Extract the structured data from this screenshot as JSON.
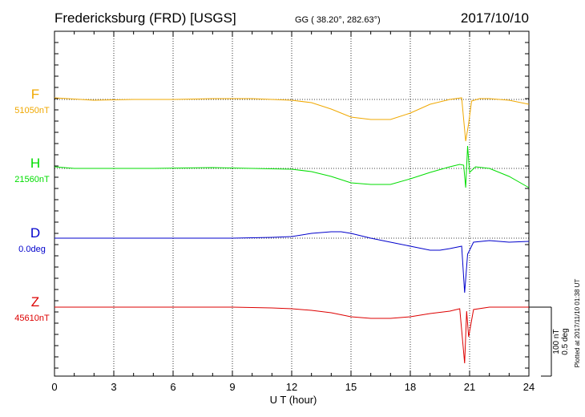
{
  "title": {
    "station": "Fredericksburg (FRD)  [USGS]",
    "coords": "GG ( 38.20°, 282.63°)",
    "date": "2017/10/10"
  },
  "xlabel": "U T (hour)",
  "plotted": "Plotted at 2017/11/10 01:38 UT",
  "scale": {
    "nt": "100 nT",
    "deg": "0.5 deg"
  },
  "chart_data": {
    "type": "line",
    "xlim": [
      0,
      24
    ],
    "x_ticks": [
      0,
      3,
      6,
      9,
      12,
      15,
      18,
      21,
      24
    ],
    "grid": true,
    "series": [
      {
        "name": "F",
        "baseline_label": "51050nT",
        "color": "#f0a800",
        "offset": 0,
        "points": [
          [
            0,
            2
          ],
          [
            2,
            -1
          ],
          [
            4,
            0
          ],
          [
            6,
            0
          ],
          [
            8,
            1
          ],
          [
            10,
            1
          ],
          [
            11,
            0
          ],
          [
            12,
            -1
          ],
          [
            13,
            -4
          ],
          [
            14,
            -12
          ],
          [
            15,
            -22
          ],
          [
            16,
            -25
          ],
          [
            17,
            -25
          ],
          [
            18,
            -17
          ],
          [
            19,
            -6
          ],
          [
            20,
            0
          ],
          [
            20.6,
            2
          ],
          [
            20.8,
            -52
          ],
          [
            20.95,
            -30
          ],
          [
            21.1,
            -2
          ],
          [
            21.5,
            1
          ],
          [
            22,
            1
          ],
          [
            23,
            -1
          ],
          [
            24,
            -6
          ]
        ]
      },
      {
        "name": "H",
        "baseline_label": "21560nT",
        "color": "#00dd00",
        "offset": 0,
        "points": [
          [
            0,
            2
          ],
          [
            1,
            0
          ],
          [
            3,
            0
          ],
          [
            5,
            0
          ],
          [
            8,
            1
          ],
          [
            10,
            0
          ],
          [
            12,
            -1
          ],
          [
            13,
            -4
          ],
          [
            14,
            -10
          ],
          [
            15,
            -18
          ],
          [
            16,
            -20
          ],
          [
            17,
            -20
          ],
          [
            18,
            -13
          ],
          [
            19,
            -5
          ],
          [
            20,
            2
          ],
          [
            20.5,
            5
          ],
          [
            20.7,
            4
          ],
          [
            20.8,
            -24
          ],
          [
            20.9,
            28
          ],
          [
            21.0,
            -5
          ],
          [
            21.3,
            2
          ],
          [
            22,
            0
          ],
          [
            23,
            -10
          ],
          [
            24,
            -24
          ]
        ]
      },
      {
        "name": "D",
        "baseline_label": "0.0deg",
        "color": "#0000cc",
        "offset": 0,
        "points": [
          [
            0,
            0
          ],
          [
            3,
            0
          ],
          [
            6,
            0
          ],
          [
            9,
            0
          ],
          [
            11,
            1
          ],
          [
            12,
            2
          ],
          [
            13,
            6
          ],
          [
            14,
            8
          ],
          [
            14.5,
            8
          ],
          [
            15,
            6
          ],
          [
            16,
            0
          ],
          [
            17,
            -5
          ],
          [
            18,
            -10
          ],
          [
            19,
            -15
          ],
          [
            19.5,
            -15
          ],
          [
            20,
            -13
          ],
          [
            20.6,
            -10
          ],
          [
            20.75,
            -68
          ],
          [
            20.9,
            -20
          ],
          [
            21.2,
            -5
          ],
          [
            22,
            -3
          ],
          [
            23,
            -5
          ],
          [
            24,
            -4
          ]
        ]
      },
      {
        "name": "Z",
        "baseline_label": "45610nT",
        "color": "#dd0000",
        "offset": 0,
        "points": [
          [
            0,
            0
          ],
          [
            3,
            0
          ],
          [
            6,
            0
          ],
          [
            9,
            0
          ],
          [
            11,
            -1
          ],
          [
            12,
            -2
          ],
          [
            13,
            -4
          ],
          [
            14,
            -7
          ],
          [
            15,
            -12
          ],
          [
            16,
            -14
          ],
          [
            17,
            -14
          ],
          [
            18,
            -12
          ],
          [
            19,
            -8
          ],
          [
            20,
            -5
          ],
          [
            20.5,
            -2
          ],
          [
            20.75,
            -70
          ],
          [
            20.85,
            -5
          ],
          [
            20.95,
            -37
          ],
          [
            21.2,
            -3
          ],
          [
            22,
            0
          ],
          [
            23,
            0
          ],
          [
            24,
            0
          ]
        ]
      }
    ]
  }
}
